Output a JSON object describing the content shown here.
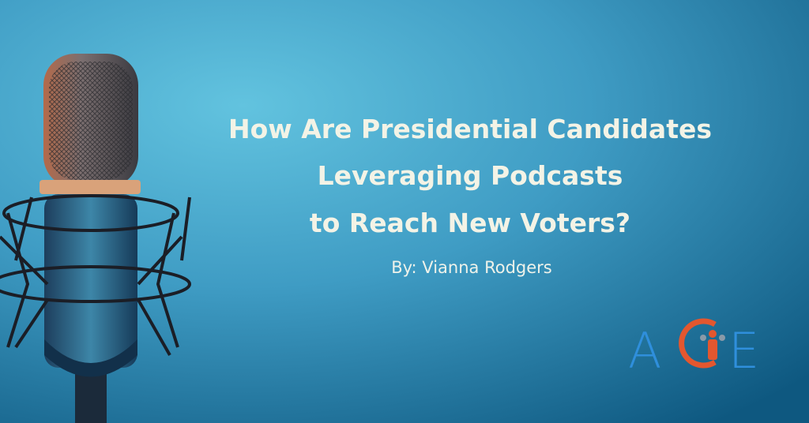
{
  "banner": {
    "title_lines": [
      "How Are Presidential Candidates",
      "Leveraging Podcasts",
      "to Reach New Voters?"
    ],
    "byline": "By: Vianna Rodgers",
    "logo": {
      "left": "A",
      "right": "E"
    }
  }
}
